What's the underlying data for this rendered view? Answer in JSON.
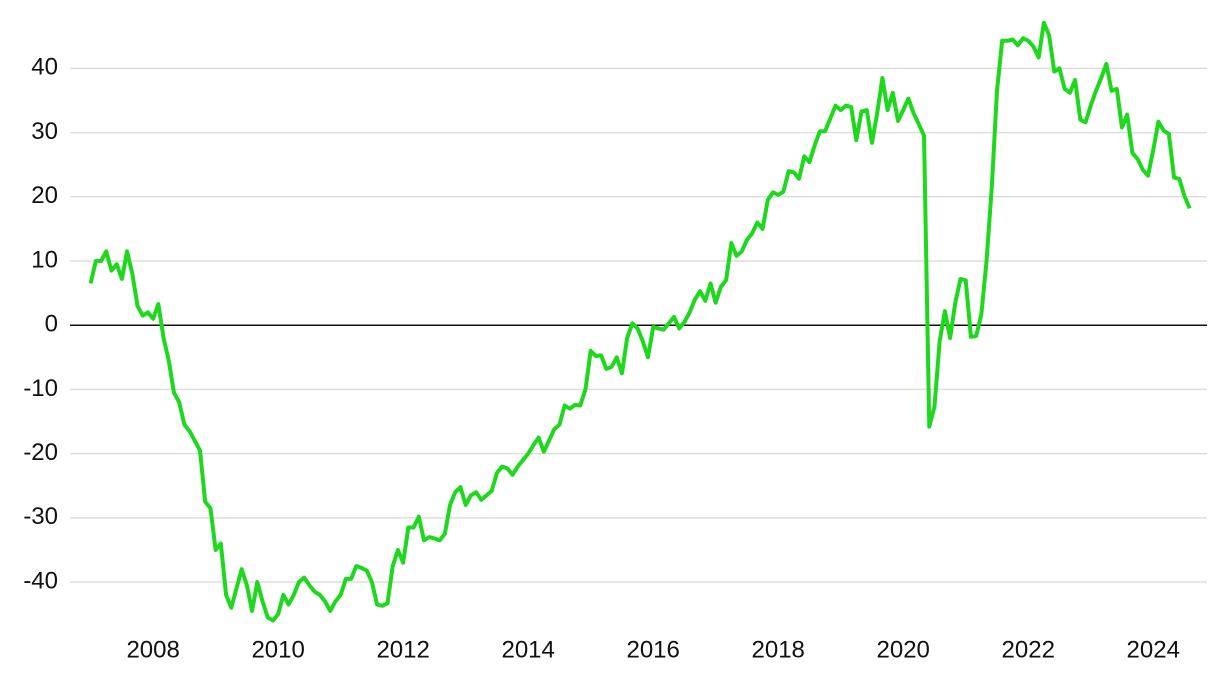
{
  "chart_data": {
    "type": "line",
    "x": [
      2007,
      2007.083,
      2007.167,
      2007.25,
      2007.333,
      2007.417,
      2007.5,
      2007.583,
      2007.667,
      2007.75,
      2007.833,
      2007.917,
      2008,
      2008.083,
      2008.167,
      2008.25,
      2008.333,
      2008.417,
      2008.5,
      2008.583,
      2008.667,
      2008.75,
      2008.833,
      2008.917,
      2009,
      2009.083,
      2009.167,
      2009.25,
      2009.333,
      2009.417,
      2009.5,
      2009.583,
      2009.667,
      2009.75,
      2009.833,
      2009.917,
      2010,
      2010.083,
      2010.167,
      2010.25,
      2010.333,
      2010.417,
      2010.5,
      2010.583,
      2010.667,
      2010.75,
      2010.833,
      2010.917,
      2011,
      2011.083,
      2011.167,
      2011.25,
      2011.333,
      2011.417,
      2011.5,
      2011.583,
      2011.667,
      2011.75,
      2011.833,
      2011.917,
      2012,
      2012.083,
      2012.167,
      2012.25,
      2012.333,
      2012.417,
      2012.5,
      2012.583,
      2012.667,
      2012.75,
      2012.833,
      2012.917,
      2013,
      2013.083,
      2013.167,
      2013.25,
      2013.333,
      2013.417,
      2013.5,
      2013.583,
      2013.667,
      2013.75,
      2013.833,
      2013.917,
      2014,
      2014.083,
      2014.167,
      2014.25,
      2014.333,
      2014.417,
      2014.5,
      2014.583,
      2014.667,
      2014.75,
      2014.833,
      2014.917,
      2015,
      2015.083,
      2015.167,
      2015.25,
      2015.333,
      2015.417,
      2015.5,
      2015.583,
      2015.667,
      2015.75,
      2015.833,
      2015.917,
      2016,
      2016.083,
      2016.167,
      2016.25,
      2016.333,
      2016.417,
      2016.5,
      2016.583,
      2016.667,
      2016.75,
      2016.833,
      2016.917,
      2017,
      2017.083,
      2017.167,
      2017.25,
      2017.333,
      2017.417,
      2017.5,
      2017.583,
      2017.667,
      2017.75,
      2017.833,
      2017.917,
      2018,
      2018.083,
      2018.167,
      2018.25,
      2018.333,
      2018.417,
      2018.5,
      2018.583,
      2018.667,
      2018.75,
      2018.833,
      2018.917,
      2019,
      2019.083,
      2019.167,
      2019.25,
      2019.333,
      2019.417,
      2019.5,
      2019.583,
      2019.667,
      2019.75,
      2019.833,
      2019.917,
      2020,
      2020.083,
      2020.167,
      2020.25,
      2020.333,
      2020.417,
      2020.5,
      2020.583,
      2020.667,
      2020.75,
      2020.833,
      2020.917,
      2021,
      2021.083,
      2021.167,
      2021.25,
      2021.333,
      2021.417,
      2021.5,
      2021.583,
      2021.667,
      2021.75,
      2021.833,
      2021.917,
      2022,
      2022.083,
      2022.167,
      2022.25,
      2022.333,
      2022.417,
      2022.5,
      2022.583,
      2022.667,
      2022.75,
      2022.833,
      2022.917,
      2023,
      2023.083,
      2023.167,
      2023.25,
      2023.333,
      2023.417,
      2023.5,
      2023.583,
      2023.667,
      2023.75,
      2023.833,
      2023.917,
      2024,
      2024.083,
      2024.167,
      2024.25,
      2024.333,
      2024.417,
      2024.5,
      2024.583
    ],
    "series": [
      {
        "color": "#1ed81e",
        "values": [
          6.5,
          10,
          10,
          11.5,
          8.5,
          9.5,
          7.2,
          11.5,
          8,
          3,
          1.5,
          2,
          1,
          3.3,
          -2,
          -5.5,
          -10.5,
          -12,
          -15.5,
          -16.5,
          -18,
          -19.5,
          -27.5,
          -28.5,
          -35,
          -34,
          -42,
          -44,
          -41,
          -38,
          -40.5,
          -44.5,
          -40,
          -43,
          -45.5,
          -46,
          -45,
          -42,
          -43.5,
          -42,
          -40,
          -39.3,
          -40.5,
          -41.5,
          -42,
          -43,
          -44.5,
          -43,
          -42,
          -39.5,
          -39.5,
          -37.5,
          -37.8,
          -38.2,
          -40,
          -43.5,
          -43.7,
          -43.3,
          -37.5,
          -35,
          -37,
          -31.5,
          -31.5,
          -29.8,
          -33.5,
          -33,
          -33.2,
          -33.5,
          -32.5,
          -28,
          -26,
          -25.2,
          -28,
          -26.5,
          -26,
          -27.2,
          -26.5,
          -25.8,
          -23,
          -22,
          -22.3,
          -23.3,
          -22,
          -21,
          -20,
          -18.7,
          -17.5,
          -19.7,
          -18,
          -16.2,
          -15.5,
          -12.5,
          -13,
          -12.4,
          -12.5,
          -10,
          -4,
          -4.8,
          -4.7,
          -6.8,
          -6.5,
          -5,
          -7.5,
          -2,
          0.3,
          -0.5,
          -2.5,
          -5,
          -0.3,
          -0.5,
          -0.7,
          0.3,
          1.3,
          -0.5,
          0.5,
          2,
          4,
          5.3,
          3.8,
          6.5,
          3.5,
          6,
          7,
          12.8,
          10.8,
          11.5,
          13.3,
          14.3,
          16,
          15,
          19.5,
          20.7,
          20.3,
          20.8,
          24,
          23.8,
          22.8,
          26.3,
          25.4,
          28,
          30.2,
          30.2,
          32.2,
          34.2,
          33.5,
          34.2,
          34,
          28.8,
          33.3,
          33.5,
          28.4,
          33,
          38.5,
          33.5,
          36.2,
          31.8,
          33.5,
          35.3,
          33,
          31.3,
          29.5,
          -15.8,
          -12.7,
          -2.5,
          2.2,
          -2,
          3.5,
          7.2,
          7,
          -1.8,
          -1.7,
          1.7,
          10,
          21.5,
          36.5,
          44.3,
          44.3,
          44.5,
          43.6,
          44.7,
          44.3,
          43.4,
          41.7,
          47.1,
          45.2,
          39.5,
          40,
          36.8,
          36.2,
          38.2,
          32,
          31.6,
          34.2,
          36.5,
          38.5,
          40.7,
          36.5,
          36.8,
          30.8,
          32.8,
          26.8,
          25.9,
          24.2,
          23.3,
          27.3,
          31.7,
          30.3,
          29.8,
          23,
          22.8,
          20.1,
          18.2
        ]
      }
    ],
    "xlim": [
      2006.67,
      2024.86
    ],
    "xticks": [
      2008,
      2010,
      2012,
      2014,
      2016,
      2018,
      2020,
      2022,
      2024
    ],
    "ylim": [
      -47,
      48
    ],
    "yticks": [
      -40,
      -30,
      -20,
      -10,
      0,
      10,
      20,
      30,
      40
    ],
    "grid": true
  }
}
